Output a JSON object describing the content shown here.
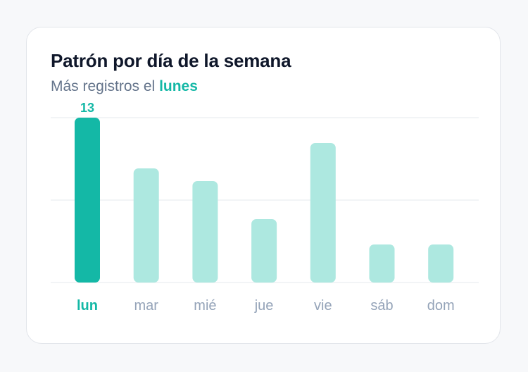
{
  "card": {
    "title": "Patrón por día de la semana",
    "subtitle_prefix": "Más registros el",
    "subtitle_highlight": "lunes"
  },
  "chart_data": {
    "type": "bar",
    "categories": [
      "lun",
      "mar",
      "mié",
      "jue",
      "vie",
      "sáb",
      "dom"
    ],
    "values": [
      13,
      9,
      8,
      5,
      11,
      3,
      3
    ],
    "highlight_index": 0,
    "value_labels": [
      "13",
      "",
      "",
      "",
      "",
      "",
      ""
    ],
    "ylim": [
      0,
      13
    ],
    "grid": true,
    "colors": {
      "highlight": "#14b8a6",
      "normal": "#ade8e0",
      "grid": "#eef0f3",
      "label_highlight": "#14b8a6",
      "label_normal": "#94a3b8"
    }
  }
}
